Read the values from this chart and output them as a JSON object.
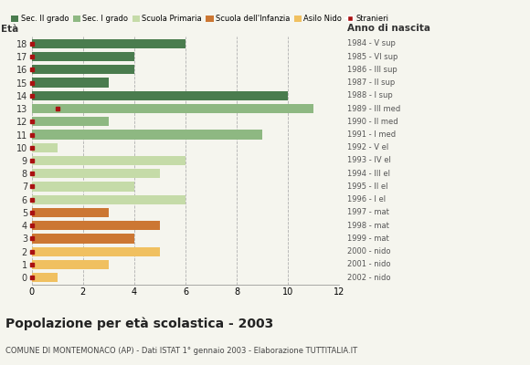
{
  "ages": [
    18,
    17,
    16,
    15,
    14,
    13,
    12,
    11,
    10,
    9,
    8,
    7,
    6,
    5,
    4,
    3,
    2,
    1,
    0
  ],
  "anno_nascita": [
    "1984 - V sup",
    "1985 - VI sup",
    "1986 - III sup",
    "1987 - II sup",
    "1988 - I sup",
    "1989 - III med",
    "1990 - II med",
    "1991 - I med",
    "1992 - V el",
    "1993 - IV el",
    "1994 - III el",
    "1995 - II el",
    "1996 - I el",
    "1997 - mat",
    "1998 - mat",
    "1999 - mat",
    "2000 - nido",
    "2001 - nido",
    "2002 - nido"
  ],
  "values": [
    6,
    4,
    4,
    3,
    10,
    11,
    3,
    9,
    1,
    6,
    5,
    4,
    6,
    3,
    5,
    4,
    5,
    3,
    1
  ],
  "bar_colors": [
    "#4a7c4e",
    "#4a7c4e",
    "#4a7c4e",
    "#4a7c4e",
    "#4a7c4e",
    "#8eb882",
    "#8eb882",
    "#8eb882",
    "#c5dba8",
    "#c5dba8",
    "#c5dba8",
    "#c5dba8",
    "#c5dba8",
    "#cc7733",
    "#cc7733",
    "#cc7733",
    "#f0c060",
    "#f0c060",
    "#f0c060"
  ],
  "stranieri_marker_ages": [
    13
  ],
  "stranieri_marker_x": [
    1.0
  ],
  "red_square_ages": [
    18,
    17,
    16,
    15,
    14,
    12,
    11,
    10,
    9,
    8,
    7,
    6,
    5,
    4,
    3,
    2,
    1,
    0
  ],
  "legend_labels": [
    "Sec. II grado",
    "Sec. I grado",
    "Scuola Primaria",
    "Scuola dell'Infanzia",
    "Asilo Nido",
    "Stranieri"
  ],
  "legend_colors": [
    "#4a7c4e",
    "#8eb882",
    "#c5dba8",
    "#cc7733",
    "#f0c060",
    "#aa1111"
  ],
  "xlim": [
    0,
    12
  ],
  "xticks": [
    0,
    2,
    4,
    6,
    8,
    10,
    12
  ],
  "ylim_low": -0.55,
  "ylim_high": 18.55,
  "title": "Popolazione per età scolastica - 2003",
  "subtitle": "COMUNE DI MONTEMONACO (AP) - Dati ISTAT 1° gennaio 2003 - Elaborazione TUTTITALIA.IT",
  "ylabel_eta": "Età",
  "ylabel_anno": "Anno di nascita",
  "background_color": "#f5f5ee",
  "bar_height": 0.72
}
